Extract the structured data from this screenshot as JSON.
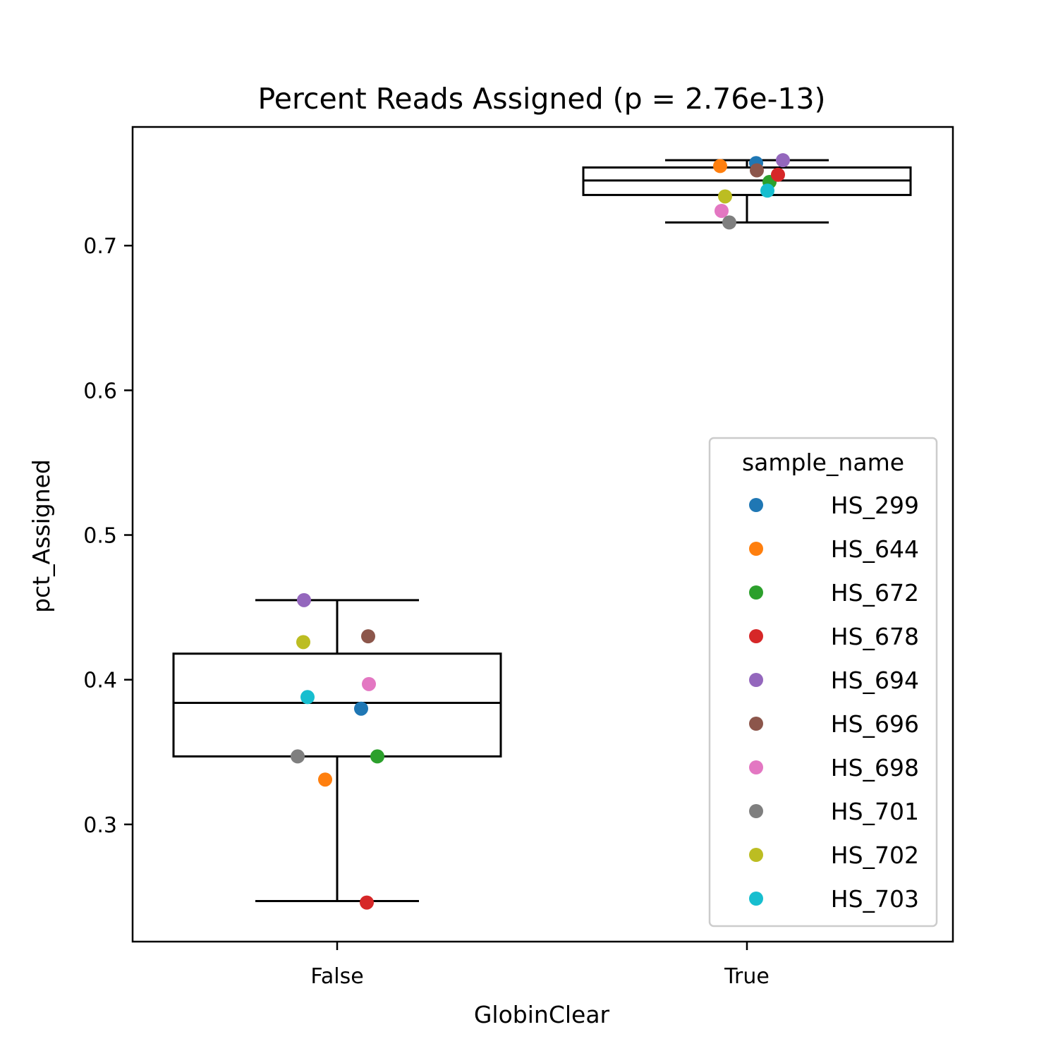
{
  "chart_data": {
    "type": "box",
    "title": "Percent Reads Assigned (p = 2.76e-13)",
    "xlabel": "GlobinClear",
    "ylabel": "pct_Assigned",
    "categories": [
      "False",
      "True"
    ],
    "ylim": [
      0.219,
      0.782
    ],
    "yticks": [
      0.3,
      0.4,
      0.5,
      0.6,
      0.7
    ],
    "ytick_labels": [
      "0.3",
      "0.4",
      "0.5",
      "0.6",
      "0.7"
    ],
    "grid": false,
    "legend": {
      "title": "sample_name",
      "placement": "lower-right"
    },
    "boxes": [
      {
        "category": "False",
        "whisker_low": 0.247,
        "q1": 0.347,
        "median": 0.384,
        "q3": 0.418,
        "whisker_high": 0.455
      },
      {
        "category": "True",
        "whisker_low": 0.716,
        "q1": 0.735,
        "median": 0.745,
        "q3": 0.754,
        "whisker_high": 0.759
      }
    ],
    "series": [
      {
        "name": "HS_299",
        "color": "#1f77b4",
        "values": [
          0.38,
          0.757
        ]
      },
      {
        "name": "HS_644",
        "color": "#ff7f0e",
        "values": [
          0.331,
          0.755
        ]
      },
      {
        "name": "HS_672",
        "color": "#2ca02c",
        "values": [
          0.347,
          0.744
        ]
      },
      {
        "name": "HS_678",
        "color": "#d62728",
        "values": [
          0.246,
          0.749
        ]
      },
      {
        "name": "HS_694",
        "color": "#9467bd",
        "values": [
          0.455,
          0.759
        ]
      },
      {
        "name": "HS_696",
        "color": "#8c564b",
        "values": [
          0.43,
          0.752
        ]
      },
      {
        "name": "HS_698",
        "color": "#e377c2",
        "values": [
          0.397,
          0.724
        ]
      },
      {
        "name": "HS_701",
        "color": "#7f7f7f",
        "values": [
          0.347,
          0.716
        ]
      },
      {
        "name": "HS_702",
        "color": "#bcbd22",
        "values": [
          0.426,
          0.734
        ]
      },
      {
        "name": "HS_703",
        "color": "#17becf",
        "values": [
          0.388,
          0.738
        ]
      }
    ]
  }
}
